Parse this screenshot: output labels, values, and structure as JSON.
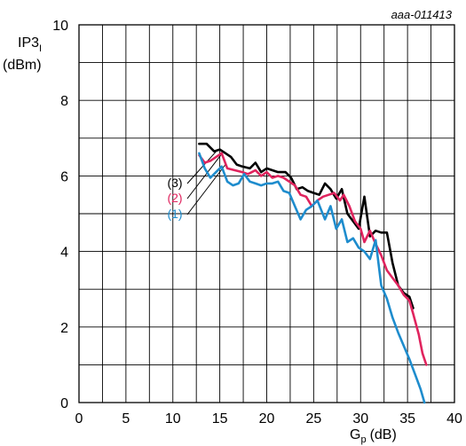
{
  "chart_data": {
    "type": "line",
    "reference_id": "aaa-011413",
    "ylabel_main": "IP3",
    "ylabel_sub": "I",
    "ylabel_unit": "(dBm)",
    "xlabel_main": "G",
    "xlabel_sub": "p",
    "xlabel_unit": "(dB)",
    "xlim": [
      0,
      40
    ],
    "ylim": [
      0,
      10
    ],
    "x_ticks": [
      0,
      5,
      10,
      15,
      20,
      25,
      30,
      35,
      40
    ],
    "y_ticks": [
      0,
      2,
      4,
      6,
      8,
      10
    ],
    "x_tick_labels": [
      "0",
      "5",
      "10",
      "15",
      "20",
      "25",
      "30",
      "35",
      "40"
    ],
    "y_tick_labels": [
      "0",
      "2",
      "4",
      "6",
      "8",
      "10"
    ],
    "x_grid_step": 2.5,
    "y_grid_step": 1,
    "grid": true,
    "series": [
      {
        "name": "(3)",
        "color": "#000000",
        "points": [
          [
            12.8,
            6.85
          ],
          [
            13.6,
            6.85
          ],
          [
            14.4,
            6.65
          ],
          [
            15.0,
            6.7
          ],
          [
            15.6,
            6.6
          ],
          [
            16.2,
            6.5
          ],
          [
            16.8,
            6.3
          ],
          [
            17.4,
            6.25
          ],
          [
            18.2,
            6.2
          ],
          [
            18.8,
            6.35
          ],
          [
            19.4,
            6.1
          ],
          [
            20.0,
            6.2
          ],
          [
            20.6,
            6.15
          ],
          [
            21.2,
            6.1
          ],
          [
            22.0,
            6.1
          ],
          [
            22.6,
            5.95
          ],
          [
            23.2,
            5.65
          ],
          [
            23.8,
            5.7
          ],
          [
            24.4,
            5.6
          ],
          [
            25.0,
            5.55
          ],
          [
            25.6,
            5.5
          ],
          [
            26.2,
            5.8
          ],
          [
            26.8,
            5.65
          ],
          [
            27.4,
            5.4
          ],
          [
            28.0,
            5.65
          ],
          [
            28.6,
            5.0
          ],
          [
            29.2,
            4.8
          ],
          [
            29.8,
            4.6
          ],
          [
            30.4,
            5.45
          ],
          [
            31.0,
            4.4
          ],
          [
            31.6,
            4.55
          ],
          [
            32.2,
            4.5
          ],
          [
            32.8,
            4.5
          ],
          [
            33.4,
            3.7
          ],
          [
            34.0,
            3.1
          ],
          [
            34.6,
            2.9
          ],
          [
            35.2,
            2.8
          ],
          [
            35.6,
            2.5
          ]
        ]
      },
      {
        "name": "(2)",
        "color": "#e0245e",
        "points": [
          [
            12.8,
            6.55
          ],
          [
            13.4,
            6.35
          ],
          [
            14.0,
            6.4
          ],
          [
            14.6,
            6.5
          ],
          [
            15.2,
            6.6
          ],
          [
            15.8,
            6.2
          ],
          [
            16.6,
            6.15
          ],
          [
            17.4,
            6.1
          ],
          [
            18.0,
            6.05
          ],
          [
            18.8,
            6.15
          ],
          [
            19.4,
            6.0
          ],
          [
            20.0,
            6.1
          ],
          [
            20.6,
            5.95
          ],
          [
            21.2,
            6.0
          ],
          [
            21.8,
            5.95
          ],
          [
            22.4,
            5.85
          ],
          [
            23.0,
            5.75
          ],
          [
            23.6,
            5.5
          ],
          [
            24.2,
            5.45
          ],
          [
            24.8,
            5.2
          ],
          [
            25.4,
            5.35
          ],
          [
            26.0,
            5.45
          ],
          [
            26.6,
            5.5
          ],
          [
            27.2,
            5.55
          ],
          [
            27.8,
            5.35
          ],
          [
            28.2,
            5.5
          ],
          [
            28.8,
            5.2
          ],
          [
            29.4,
            4.8
          ],
          [
            30.0,
            4.6
          ],
          [
            30.4,
            4.25
          ],
          [
            31.0,
            4.55
          ],
          [
            31.6,
            4.2
          ],
          [
            32.2,
            3.9
          ],
          [
            32.8,
            3.5
          ],
          [
            33.4,
            3.3
          ],
          [
            34.0,
            3.1
          ],
          [
            34.6,
            2.85
          ],
          [
            35.2,
            2.7
          ],
          [
            35.6,
            2.35
          ],
          [
            36.2,
            1.8
          ],
          [
            36.6,
            1.3
          ],
          [
            37.0,
            1.0
          ]
        ]
      },
      {
        "name": "(1)",
        "color": "#1e8ccd",
        "points": [
          [
            12.8,
            6.6
          ],
          [
            13.4,
            6.2
          ],
          [
            14.0,
            5.95
          ],
          [
            14.6,
            6.1
          ],
          [
            15.2,
            6.25
          ],
          [
            15.8,
            5.85
          ],
          [
            16.4,
            5.75
          ],
          [
            17.0,
            5.8
          ],
          [
            17.6,
            6.05
          ],
          [
            18.2,
            5.85
          ],
          [
            18.8,
            5.8
          ],
          [
            19.4,
            5.75
          ],
          [
            20.0,
            5.8
          ],
          [
            20.6,
            5.8
          ],
          [
            21.2,
            5.85
          ],
          [
            21.8,
            5.6
          ],
          [
            22.4,
            5.55
          ],
          [
            23.0,
            5.2
          ],
          [
            23.6,
            4.85
          ],
          [
            24.2,
            5.1
          ],
          [
            24.8,
            5.2
          ],
          [
            25.4,
            5.35
          ],
          [
            25.8,
            5.1
          ],
          [
            26.2,
            4.85
          ],
          [
            26.8,
            5.2
          ],
          [
            27.4,
            4.6
          ],
          [
            28.0,
            4.85
          ],
          [
            28.6,
            4.25
          ],
          [
            29.2,
            4.35
          ],
          [
            29.8,
            4.1
          ],
          [
            30.4,
            4.0
          ],
          [
            31.0,
            3.8
          ],
          [
            31.6,
            4.3
          ],
          [
            32.2,
            3.1
          ],
          [
            32.8,
            2.75
          ],
          [
            33.4,
            2.25
          ],
          [
            34.0,
            1.85
          ],
          [
            34.6,
            1.5
          ],
          [
            35.2,
            1.15
          ],
          [
            35.8,
            0.75
          ],
          [
            36.4,
            0.35
          ],
          [
            36.8,
            0.0
          ]
        ]
      }
    ],
    "series_label_lines": [
      {
        "name": "(3)",
        "to": [
          14.8,
          6.7
        ]
      },
      {
        "name": "(2)",
        "to": [
          15.2,
          6.58
        ]
      },
      {
        "name": "(1)",
        "to": [
          15.6,
          6.3
        ]
      }
    ]
  }
}
